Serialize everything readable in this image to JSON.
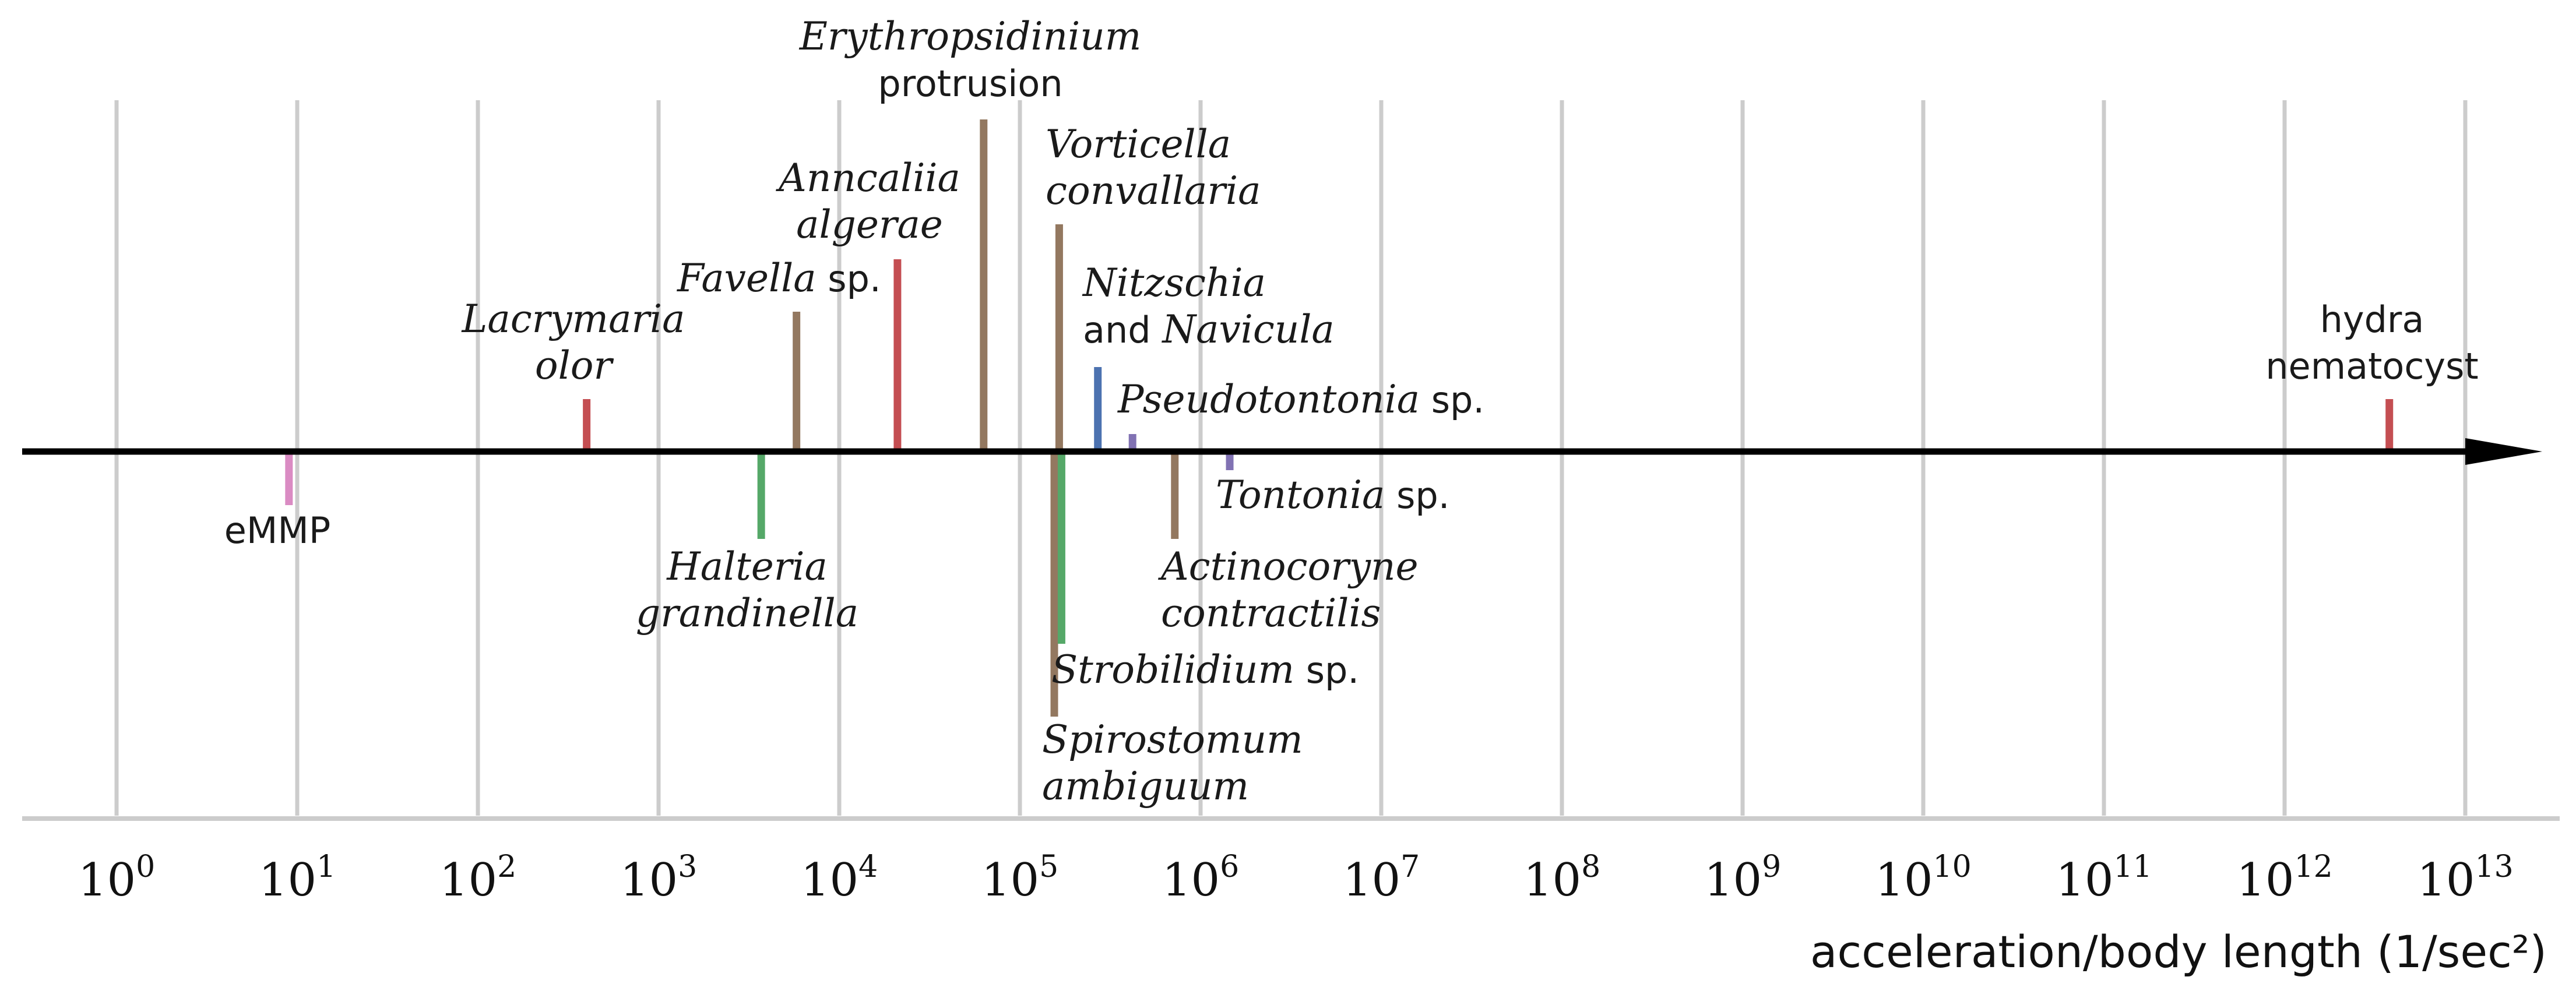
{
  "chart_data": {
    "type": "scatter",
    "scale": "log",
    "xlabel": "acceleration/body length (1/sec²)",
    "xlim": [
      1,
      10000000000000
    ],
    "x_ticks": [
      {
        "base": "10",
        "exp": "0"
      },
      {
        "base": "10",
        "exp": "1"
      },
      {
        "base": "10",
        "exp": "2"
      },
      {
        "base": "10",
        "exp": "3"
      },
      {
        "base": "10",
        "exp": "4"
      },
      {
        "base": "10",
        "exp": "5"
      },
      {
        "base": "10",
        "exp": "6"
      },
      {
        "base": "10",
        "exp": "7"
      },
      {
        "base": "10",
        "exp": "8"
      },
      {
        "base": "10",
        "exp": "9"
      },
      {
        "base": "10",
        "exp": "10"
      },
      {
        "base": "10",
        "exp": "11"
      },
      {
        "base": "10",
        "exp": "12"
      },
      {
        "base": "10",
        "exp": "13"
      }
    ],
    "grid": true,
    "colors": {
      "red": "#c44e52",
      "brown": "#937860",
      "green": "#55a868",
      "blue": "#4c72b0",
      "purple": "#8172b3",
      "pink": "#da8bc3",
      "axis": "#000000",
      "grid": "#cccccc"
    },
    "points": [
      {
        "id": "emmp",
        "value": 9,
        "color": "pink",
        "side": "below",
        "label": [
          [
            {
              "text": "eMMP",
              "italic": false
            }
          ]
        ]
      },
      {
        "id": "lacrymaria",
        "value": 400,
        "color": "red",
        "side": "above",
        "label": [
          [
            {
              "text": "Lacrymaria",
              "italic": true
            }
          ],
          [
            {
              "text": "olor",
              "italic": true
            }
          ]
        ]
      },
      {
        "id": "halteria",
        "value": 3700,
        "color": "green",
        "side": "below",
        "label": [
          [
            {
              "text": "Halteria",
              "italic": true
            }
          ],
          [
            {
              "text": "grandinella",
              "italic": true
            }
          ]
        ]
      },
      {
        "id": "favella",
        "value": 5800,
        "color": "brown",
        "side": "above",
        "label": [
          [
            {
              "text": "Favella",
              "italic": true
            },
            {
              "text": " sp.",
              "italic": false
            }
          ]
        ]
      },
      {
        "id": "anncaliia",
        "value": 21000,
        "color": "red",
        "side": "above",
        "label": [
          [
            {
              "text": "Anncaliia",
              "italic": true
            }
          ],
          [
            {
              "text": "algerae",
              "italic": true
            }
          ]
        ]
      },
      {
        "id": "erythropsidinium",
        "value": 63000,
        "color": "brown",
        "side": "above",
        "label": [
          [
            {
              "text": "Erythropsidinium",
              "italic": true
            }
          ],
          [
            {
              "text": "protrusion",
              "italic": false
            }
          ]
        ]
      },
      {
        "id": "spirostomum",
        "value": 155000,
        "color": "brown",
        "side": "below",
        "label": [
          [
            {
              "text": "Spirostomum",
              "italic": true
            }
          ],
          [
            {
              "text": "ambiguum",
              "italic": true
            }
          ]
        ]
      },
      {
        "id": "strobilidium",
        "value": 170000,
        "color": "green",
        "side": "below",
        "label": [
          [
            {
              "text": "Strobilidium",
              "italic": true
            },
            {
              "text": " sp.",
              "italic": false
            }
          ]
        ]
      },
      {
        "id": "vorticella",
        "value": 165000,
        "color": "brown",
        "side": "above",
        "label": [
          [
            {
              "text": "Vorticella",
              "italic": true
            }
          ],
          [
            {
              "text": "convallaria",
              "italic": true
            }
          ]
        ]
      },
      {
        "id": "nitzschia",
        "value": 270000,
        "color": "blue",
        "side": "above",
        "label": [
          [
            {
              "text": "Nitzschia",
              "italic": true
            }
          ],
          [
            {
              "text": "and ",
              "italic": false
            },
            {
              "text": "Navicula",
              "italic": true
            }
          ]
        ]
      },
      {
        "id": "pseudotontonia",
        "value": 420000,
        "color": "purple",
        "side": "above",
        "label": [
          [
            {
              "text": "Pseudotontonia",
              "italic": true
            },
            {
              "text": " sp.",
              "italic": false
            }
          ]
        ]
      },
      {
        "id": "actinocoryne",
        "value": 720000,
        "color": "brown",
        "side": "below",
        "label": [
          [
            {
              "text": "Actinocoryne",
              "italic": true
            }
          ],
          [
            {
              "text": "contractilis",
              "italic": true
            }
          ]
        ]
      },
      {
        "id": "tontonia",
        "value": 1450000,
        "color": "purple",
        "side": "below",
        "label": [
          [
            {
              "text": "Tontonia",
              "italic": true
            },
            {
              "text": " sp.",
              "italic": false
            }
          ]
        ]
      },
      {
        "id": "hydra",
        "value": 3800000000000,
        "color": "red",
        "side": "above",
        "label": [
          [
            {
              "text": "hydra",
              "italic": false
            }
          ],
          [
            {
              "text": "nematocyst",
              "italic": false
            }
          ]
        ]
      }
    ]
  }
}
